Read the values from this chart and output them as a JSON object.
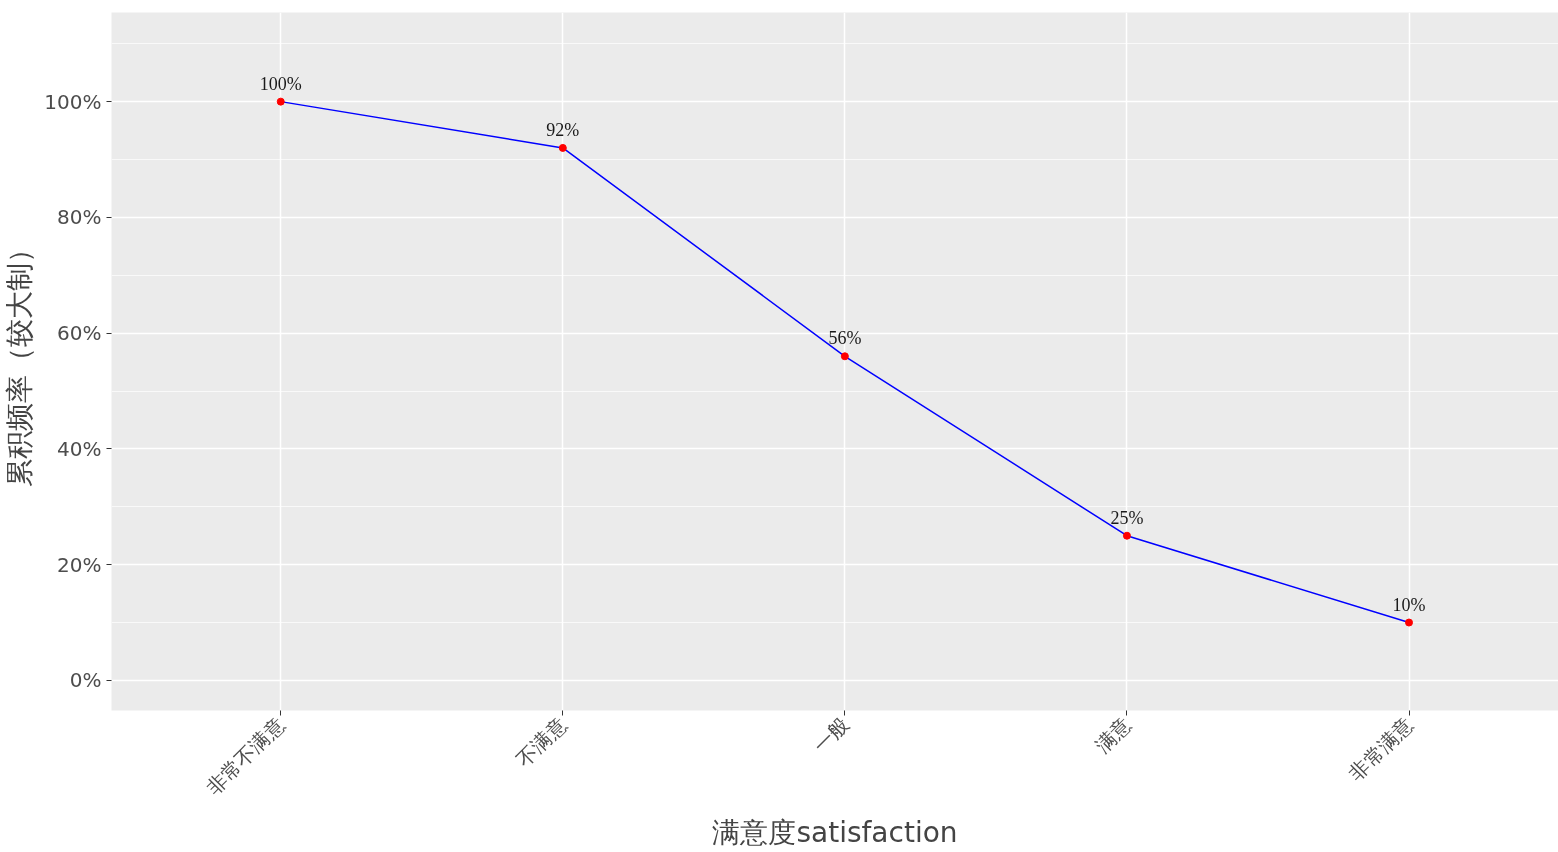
{
  "chart_data": {
    "type": "line",
    "xlabel": "满意度satisfaction",
    "ylabel": "累积频率（较大制）",
    "categories": [
      "非常不满意",
      "不满意",
      "一般",
      "满意",
      "非常满意"
    ],
    "series": [
      {
        "color": "#0000ff",
        "values": [
          100,
          92,
          56,
          25,
          10
        ],
        "marker": "none"
      },
      {
        "type": "scatter",
        "color": "#ff0000",
        "values": [
          100,
          92,
          56,
          25,
          10
        ],
        "marker": "circle",
        "value_labels": [
          "100%",
          "92%",
          "56%",
          "25%",
          "10%"
        ]
      }
    ],
    "ylim": [
      -5.2,
      115.4
    ],
    "yticks": [
      {
        "value": 0,
        "label": "0%"
      },
      {
        "value": 20,
        "label": "20%"
      },
      {
        "value": 40,
        "label": "40%"
      },
      {
        "value": 60,
        "label": "60%"
      },
      {
        "value": 80,
        "label": "80%"
      },
      {
        "value": 100,
        "label": "100%"
      }
    ],
    "grid": true
  }
}
